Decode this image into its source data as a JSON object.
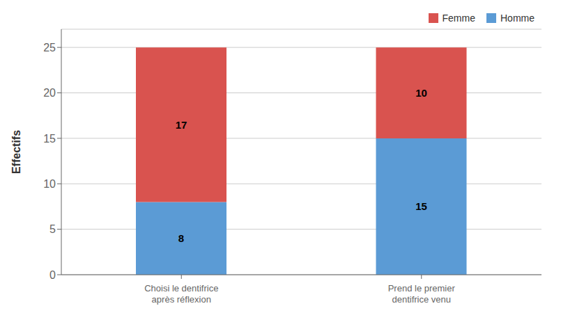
{
  "chart_data": {
    "type": "bar",
    "stacked": true,
    "categories": [
      "Choisi le dentifrice\naprès réflexion",
      "Prend le premier\ndentifrice venu"
    ],
    "series": [
      {
        "name": "Homme",
        "color": "#5B9BD5",
        "values": [
          8,
          15
        ]
      },
      {
        "name": "Femme",
        "color": "#D9534F",
        "values": [
          17,
          10
        ]
      }
    ],
    "ylabel": "Effectifs",
    "ylim": [
      0,
      27
    ],
    "yticks": [
      0,
      5,
      10,
      15,
      20,
      25
    ],
    "grid": true,
    "legend": "upper right",
    "data_labels": true
  }
}
